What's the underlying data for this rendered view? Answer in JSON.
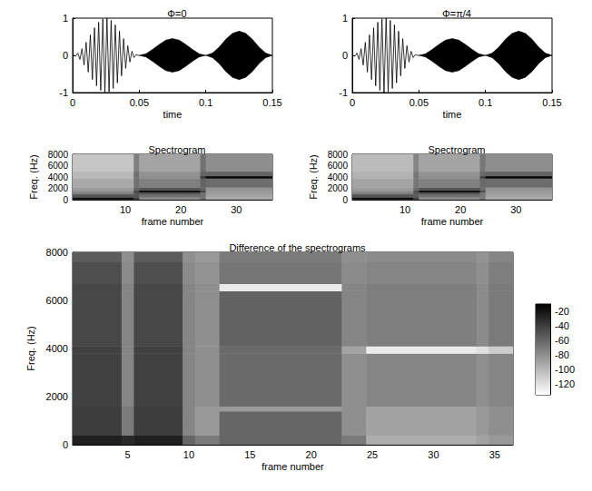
{
  "chart_data": [
    {
      "type": "line",
      "title": "Φ=0",
      "xlabel": "time",
      "xlim": [
        0,
        0.15
      ],
      "xticks": [
        0,
        0.05,
        0.1,
        0.15
      ],
      "ylim": [
        -1,
        1
      ],
      "yticks": [
        -1,
        0,
        1
      ],
      "series": [
        {
          "type": "line",
          "color": "#000000",
          "x": [
            0,
            0.00078,
            0.00234,
            0.00391,
            0.00547,
            0.00703,
            0.00859,
            0.01016,
            0.01172,
            0.01328,
            0.01484,
            0.01641,
            0.01797,
            0.01953,
            0.02109,
            0.02266,
            0.02422,
            0.02578,
            0.02734,
            0.02891,
            0.03047,
            0.03203,
            0.03359,
            0.03516,
            0.03672,
            0.03828,
            0.03984,
            0.04141,
            0.04297,
            0.04453,
            0.04609,
            0.04766,
            0.04922,
            0.05
          ],
          "values": [
            0,
            0,
            -0.02,
            0.06,
            -0.11,
            0.18,
            -0.26,
            0.35,
            -0.45,
            0.55,
            -0.65,
            0.74,
            -0.82,
            0.89,
            -0.94,
            0.98,
            -1,
            1,
            -0.98,
            0.94,
            -0.89,
            0.82,
            -0.74,
            0.65,
            -0.55,
            0.45,
            -0.35,
            0.26,
            -0.18,
            0.11,
            -0.06,
            0.02,
            0,
            0
          ]
        },
        {
          "type": "band",
          "color": "#000000",
          "x": [
            0.05,
            0.055,
            0.06,
            0.065,
            0.07,
            0.075,
            0.08,
            0.085,
            0.09,
            0.095,
            0.1,
            0.105,
            0.11,
            0.115,
            0.12,
            0.125,
            0.13,
            0.135,
            0.14,
            0.145,
            0.15
          ],
          "upper": [
            0,
            0.04,
            0.16,
            0.29,
            0.41,
            0.45,
            0.41,
            0.29,
            0.16,
            0.04,
            0,
            0.06,
            0.22,
            0.43,
            0.59,
            0.65,
            0.59,
            0.43,
            0.22,
            0.06,
            0
          ],
          "lower": [
            0,
            -0.04,
            -0.16,
            -0.29,
            -0.41,
            -0.45,
            -0.41,
            -0.29,
            -0.16,
            -0.04,
            0,
            -0.06,
            -0.22,
            -0.43,
            -0.59,
            -0.65,
            -0.59,
            -0.43,
            -0.22,
            -0.06,
            0
          ]
        }
      ]
    },
    {
      "type": "line",
      "title": "Φ=π/4",
      "xlabel": "time",
      "xlim": [
        0,
        0.15
      ],
      "xticks": [
        0,
        0.05,
        0.1,
        0.15
      ],
      "ylim": [
        -1,
        1
      ],
      "yticks": [
        -1,
        0,
        1
      ],
      "series": [
        {
          "type": "line",
          "color": "#000000",
          "x": [
            0,
            0.00039,
            0.00195,
            0.00352,
            0.00508,
            0.00664,
            0.0082,
            0.00977,
            0.01133,
            0.01289,
            0.01445,
            0.01602,
            0.01758,
            0.01914,
            0.0207,
            0.02227,
            0.02383,
            0.02539,
            0.02695,
            0.02852,
            0.03008,
            0.03164,
            0.0332,
            0.03477,
            0.03633,
            0.03789,
            0.03945,
            0.04102,
            0.04258,
            0.04414,
            0.0457,
            0.04727,
            0.04883,
            0.05
          ],
          "values": [
            0,
            0,
            -0.02,
            0.06,
            -0.11,
            0.18,
            -0.26,
            0.35,
            -0.45,
            0.55,
            -0.65,
            0.74,
            -0.82,
            0.89,
            -0.94,
            0.98,
            -1,
            1,
            -0.98,
            0.94,
            -0.89,
            0.82,
            -0.74,
            0.65,
            -0.55,
            0.45,
            -0.35,
            0.26,
            -0.18,
            0.11,
            -0.06,
            0.02,
            0,
            0
          ]
        },
        {
          "type": "band",
          "color": "#000000",
          "x": [
            0.05,
            0.055,
            0.06,
            0.065,
            0.07,
            0.075,
            0.08,
            0.085,
            0.09,
            0.095,
            0.1,
            0.105,
            0.11,
            0.115,
            0.12,
            0.125,
            0.13,
            0.135,
            0.14,
            0.145,
            0.15
          ],
          "upper": [
            0,
            0.04,
            0.16,
            0.29,
            0.41,
            0.45,
            0.41,
            0.29,
            0.16,
            0.04,
            0,
            0.06,
            0.22,
            0.43,
            0.59,
            0.65,
            0.59,
            0.43,
            0.22,
            0.06,
            0
          ],
          "lower": [
            0,
            -0.04,
            -0.16,
            -0.29,
            -0.41,
            -0.45,
            -0.41,
            -0.29,
            -0.16,
            -0.04,
            0,
            -0.06,
            -0.22,
            -0.43,
            -0.59,
            -0.65,
            -0.59,
            -0.43,
            -0.22,
            -0.06,
            0
          ]
        }
      ]
    },
    {
      "type": "heatmap",
      "title": "Spectrogram",
      "xlabel": "frame number",
      "ylabel": "Freq. (Hz)",
      "xlim": [
        0.5,
        36.5
      ],
      "xticks": [
        10,
        20,
        30
      ],
      "ylim": [
        0,
        8000
      ],
      "yticks": [
        0,
        2000,
        4000,
        6000,
        8000
      ],
      "zlim": [
        -90,
        0
      ],
      "x_edges": [
        0.5,
        11.5,
        12.5,
        23.5,
        24.5,
        36.5
      ],
      "y_edges": [
        0,
        150,
        450,
        1000,
        1350,
        1650,
        2200,
        3800,
        4200,
        5000,
        8000
      ],
      "cells": [
        [
          -25,
          -30,
          -55,
          -40,
          -60
        ],
        [
          -2,
          -20,
          -50,
          -40,
          -60
        ],
        [
          -30,
          -30,
          -40,
          -40,
          -58
        ],
        [
          -45,
          -30,
          -30,
          -40,
          -55
        ],
        [
          -50,
          -25,
          -2,
          -25,
          -55
        ],
        [
          -55,
          -35,
          -30,
          -35,
          -52
        ],
        [
          -60,
          -40,
          -45,
          -35,
          -38
        ],
        [
          -65,
          -40,
          -50,
          -20,
          -2
        ],
        [
          -65,
          -40,
          -52,
          -35,
          -35
        ],
        [
          -70,
          -45,
          -58,
          -40,
          -50
        ]
      ]
    },
    {
      "type": "heatmap",
      "title": "Spectrogram",
      "xlabel": "frame number",
      "ylabel": "Freq. (Hz)",
      "xlim": [
        0.5,
        36.5
      ],
      "xticks": [
        10,
        20,
        30
      ],
      "ylim": [
        0,
        8000
      ],
      "yticks": [
        0,
        2000,
        4000,
        6000,
        8000
      ],
      "zlim": [
        -90,
        0
      ],
      "x_edges": [
        0.5,
        11.5,
        12.5,
        23.5,
        24.5,
        36.5
      ],
      "y_edges": [
        0,
        150,
        450,
        1000,
        1350,
        1650,
        2200,
        3800,
        4200,
        5000,
        8000
      ],
      "cells": [
        [
          -25,
          -32,
          -55,
          -42,
          -60
        ],
        [
          -2,
          -22,
          -50,
          -42,
          -60
        ],
        [
          -30,
          -32,
          -40,
          -42,
          -58
        ],
        [
          -45,
          -32,
          -30,
          -42,
          -55
        ],
        [
          -50,
          -27,
          -2,
          -27,
          -55
        ],
        [
          -55,
          -37,
          -30,
          -37,
          -52
        ],
        [
          -58,
          -42,
          -45,
          -37,
          -38
        ],
        [
          -62,
          -42,
          -50,
          -22,
          -2
        ],
        [
          -63,
          -42,
          -52,
          -37,
          -35
        ],
        [
          -66,
          -47,
          -58,
          -42,
          -50
        ]
      ]
    },
    {
      "type": "heatmap",
      "title": "Difference of the spectrograms",
      "xlabel": "frame number",
      "ylabel": "Freq. (Hz)",
      "xlim": [
        0.5,
        36.5
      ],
      "xticks": [
        5,
        10,
        15,
        20,
        25,
        30,
        35
      ],
      "ylim": [
        0,
        8000
      ],
      "yticks": [
        0,
        2000,
        4000,
        6000,
        8000
      ],
      "colorbar": {
        "lim": [
          -135,
          -10
        ],
        "ticks": [
          -20,
          -40,
          -60,
          -80,
          -100,
          -120
        ]
      },
      "x_edges": [
        0.5,
        4.5,
        5.5,
        9.5,
        10.5,
        12.5,
        22.5,
        24.5,
        33.5,
        34.5,
        36.5
      ],
      "y_edges": [
        0,
        400,
        1400,
        1600,
        3800,
        4100,
        6400,
        6700,
        7600,
        8000
      ],
      "cells": [
        [
          -25,
          -30,
          -25,
          -60,
          -70,
          -60,
          -70,
          -95,
          -90,
          -85
        ],
        [
          -40,
          -70,
          -40,
          -75,
          -85,
          -60,
          -80,
          -90,
          -85,
          -80
        ],
        [
          -40,
          -70,
          -40,
          -75,
          -85,
          -85,
          -80,
          -90,
          -85,
          -80
        ],
        [
          -42,
          -75,
          -42,
          -75,
          -80,
          -62,
          -80,
          -75,
          -80,
          -75
        ],
        [
          -42,
          -75,
          -42,
          -75,
          -80,
          -62,
          -90,
          -125,
          -120,
          -110
        ],
        [
          -45,
          -75,
          -45,
          -75,
          -80,
          -58,
          -75,
          -72,
          -78,
          -70
        ],
        [
          -45,
          -75,
          -45,
          -75,
          -80,
          -125,
          -75,
          -72,
          -78,
          -70
        ],
        [
          -48,
          -78,
          -48,
          -78,
          -82,
          -68,
          -78,
          -75,
          -80,
          -72
        ],
        [
          -55,
          -80,
          -55,
          -80,
          -85,
          -70,
          -80,
          -78,
          -82,
          -75
        ]
      ]
    }
  ]
}
